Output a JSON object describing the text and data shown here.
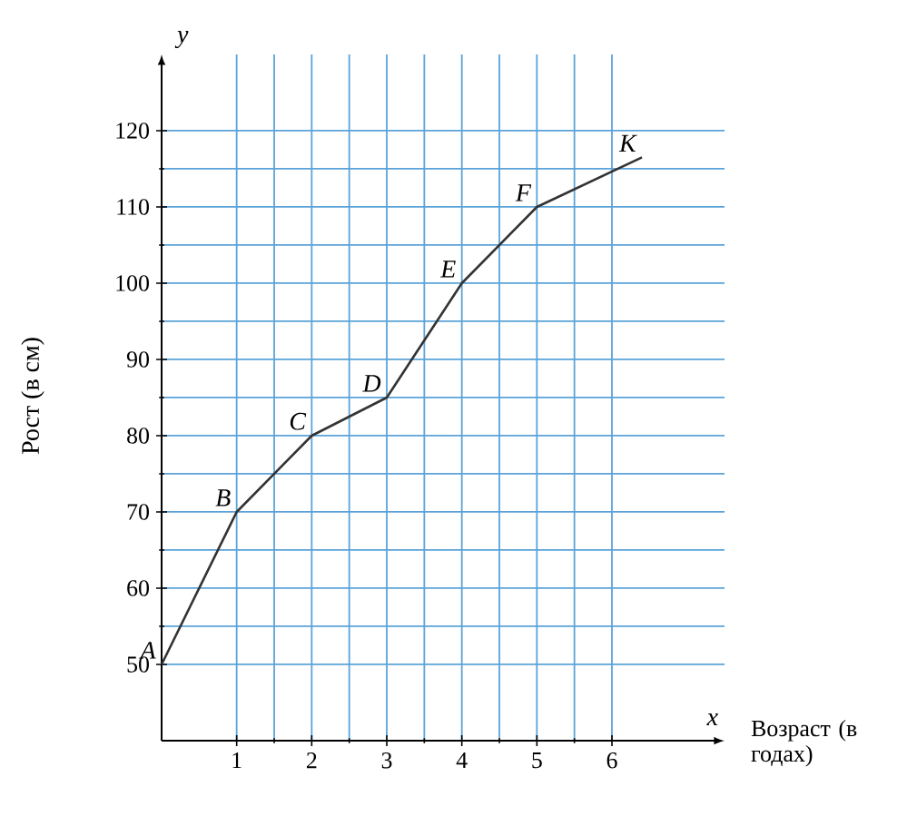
{
  "chart_data": {
    "type": "line",
    "xlabel": "Возраст (в годах)",
    "ylabel": "Рост (в см)",
    "x": [
      0,
      1,
      2,
      3,
      4,
      5,
      6.4
    ],
    "series": [
      {
        "color": "#333333",
        "values": [
          50,
          70,
          80,
          85,
          100,
          110,
          116.5
        ]
      }
    ],
    "xlim": [
      0,
      7.5
    ],
    "ylim": [
      40,
      130
    ],
    "xticks": [
      1,
      2,
      3,
      4,
      5,
      6
    ],
    "yticks": [
      50,
      60,
      70,
      80,
      90,
      100,
      110,
      120
    ],
    "grid": true,
    "marker": "none",
    "line_style": "solid",
    "annotations": [
      {
        "text": "A",
        "x": 0,
        "y": 50
      },
      {
        "text": "B",
        "x": 1,
        "y": 70
      },
      {
        "text": "C",
        "x": 2,
        "y": 80
      },
      {
        "text": "D",
        "x": 3,
        "y": 85
      },
      {
        "text": "E",
        "x": 4,
        "y": 100
      },
      {
        "text": "F",
        "x": 5,
        "y": 110
      },
      {
        "text": "K",
        "x": 6.4,
        "y": 116.5
      },
      "x",
      "y"
    ]
  }
}
